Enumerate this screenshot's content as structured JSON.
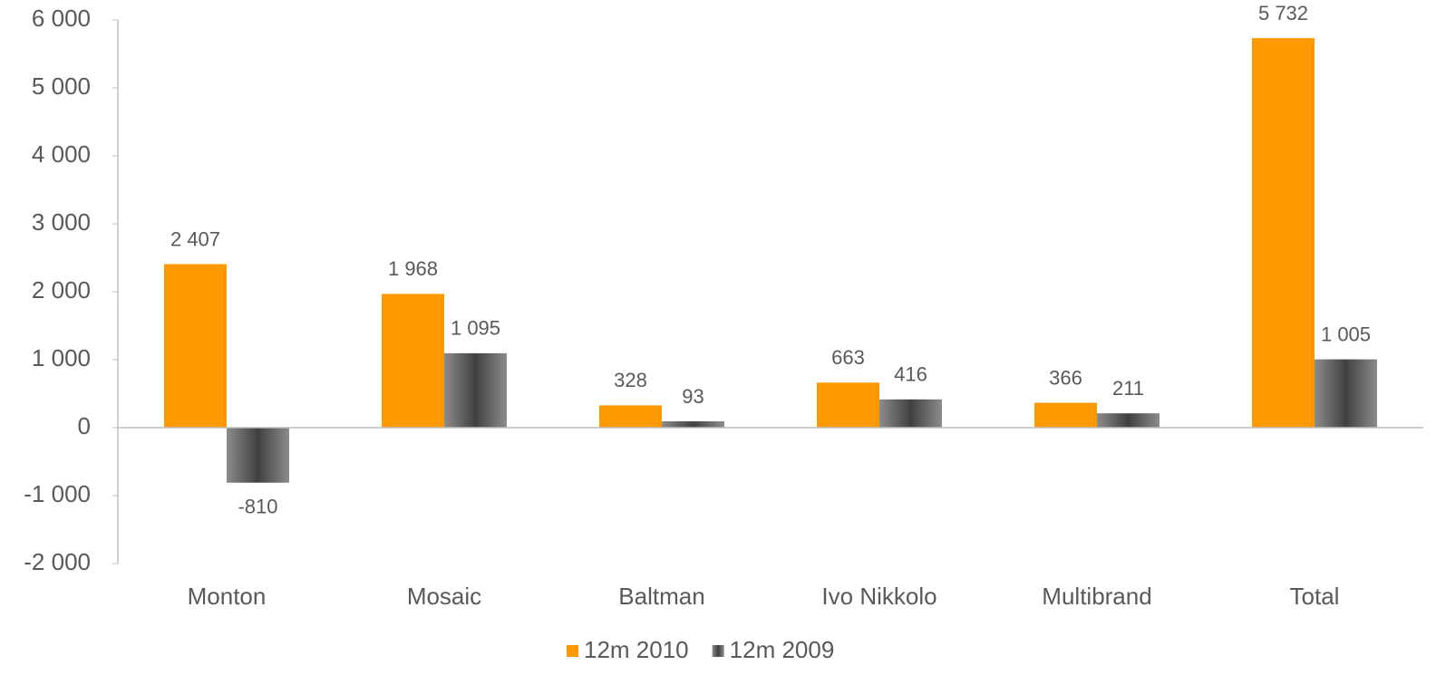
{
  "chart_data": {
    "type": "bar",
    "categories": [
      "Monton",
      "Mosaic",
      "Baltman",
      "Ivo Nikkolo",
      "Multibrand",
      "Total"
    ],
    "series": [
      {
        "name": "12m 2010",
        "color": "#ff9900",
        "values": [
          2407,
          1968,
          328,
          663,
          366,
          5732
        ],
        "value_labels": [
          "2 407",
          "1 968",
          "328",
          "663",
          "366",
          "5 732"
        ]
      },
      {
        "name": "12m 2009",
        "color": "#404040",
        "values": [
          -810,
          1095,
          93,
          416,
          211,
          1005
        ],
        "value_labels": [
          "-810",
          "1 095",
          "93",
          "416",
          "211",
          "1 005"
        ]
      }
    ],
    "ylim": [
      -2000,
      6000
    ],
    "yticks": [
      {
        "value": -2000,
        "label": "-2 000"
      },
      {
        "value": -1000,
        "label": "-1 000"
      },
      0,
      {
        "value": 1000,
        "label": "1 000"
      },
      {
        "value": 2000,
        "label": "2 000"
      },
      {
        "value": 3000,
        "label": "3 000"
      },
      {
        "value": 4000,
        "label": "4 000"
      },
      {
        "value": 5000,
        "label": "5 000"
      },
      {
        "value": 6000,
        "label": "6 000"
      }
    ],
    "grid": false,
    "legend": "bottom"
  }
}
